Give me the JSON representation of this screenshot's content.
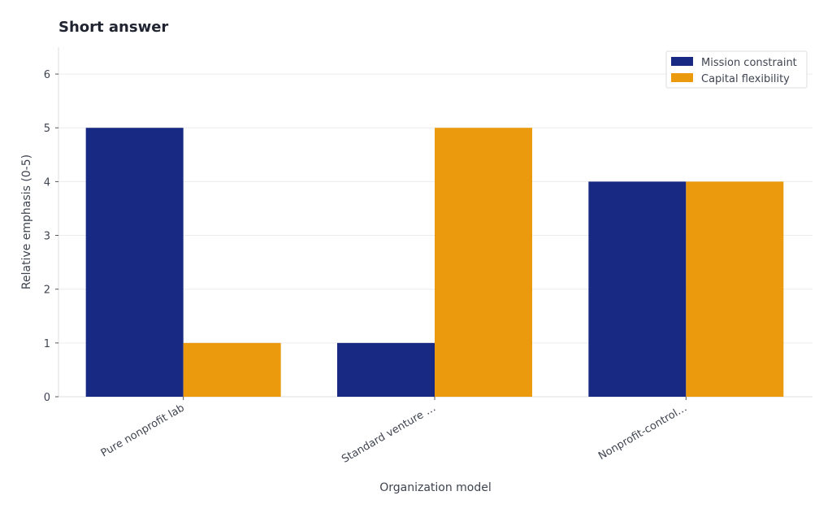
{
  "chart_data": {
    "type": "bar",
    "title": "Short answer",
    "xlabel": "Organization model",
    "ylabel": "Relative emphasis (0-5)",
    "categories": [
      "Pure nonprofit lab",
      "Standard venture …",
      "Nonprofit-control…"
    ],
    "series": [
      {
        "name": "Mission constraint",
        "color": "#172983",
        "values": [
          5,
          1,
          4
        ]
      },
      {
        "name": "Capital flexibility",
        "color": "#ea9a0c",
        "values": [
          1,
          5,
          4
        ]
      }
    ],
    "ylim": [
      0,
      6.5
    ],
    "yticks": [
      0,
      1,
      2,
      3,
      4,
      5,
      6
    ],
    "grid": true,
    "legend_position": "top-right"
  }
}
